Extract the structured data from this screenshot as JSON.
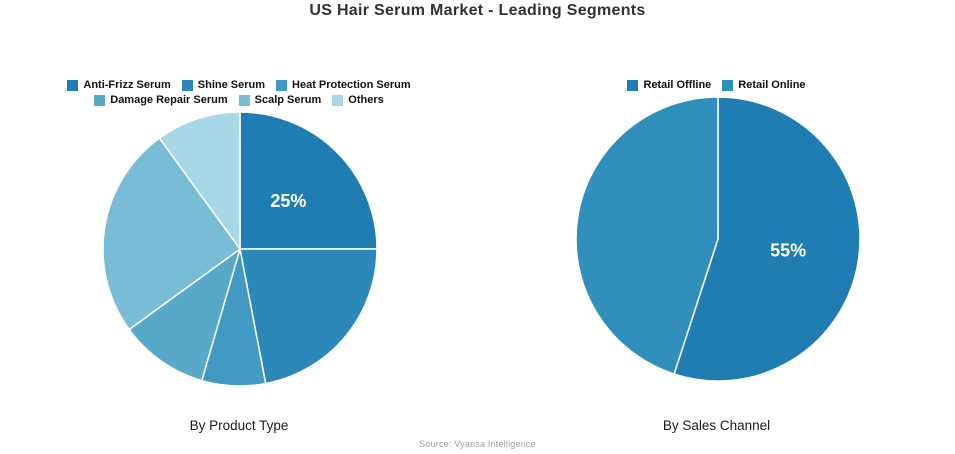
{
  "header": {
    "title": "US Hair Serum Market - Leading Segments"
  },
  "footer": {
    "source": "Source: Vyansa Intelligence"
  },
  "chart_data": [
    {
      "type": "pie",
      "title": "By Product Type",
      "start_angle": "12-oclock",
      "direction": "clockwise",
      "legend_position": "top",
      "labels": [
        "Anti-Frizz Serum",
        "Shine Serum",
        "Heat Protection Serum",
        "Damage Repair Serum",
        "Scalp Serum",
        "Others"
      ],
      "values": [
        25,
        22,
        7.5,
        10.5,
        25,
        10
      ],
      "colors": [
        "#1f7db2",
        "#2c88b8",
        "#4299c1",
        "#58a9c9",
        "#79bcd6",
        "#a8d7e8"
      ],
      "legend_rows": [
        [
          0,
          1,
          2
        ],
        [
          3,
          4,
          5
        ]
      ],
      "data_labels": [
        {
          "slice": 0,
          "text": "25%"
        }
      ]
    },
    {
      "type": "pie",
      "title": "By Sales Channel",
      "start_angle": "12-oclock",
      "direction": "clockwise",
      "legend_position": "top",
      "labels": [
        "Retail Offline",
        "Retail Online"
      ],
      "values": [
        55,
        45
      ],
      "colors": [
        "#1f7db2",
        "#3190bb"
      ],
      "legend_rows": [
        [
          0,
          1
        ]
      ],
      "data_labels": [
        {
          "slice": 0,
          "text": "55%"
        }
      ]
    }
  ]
}
